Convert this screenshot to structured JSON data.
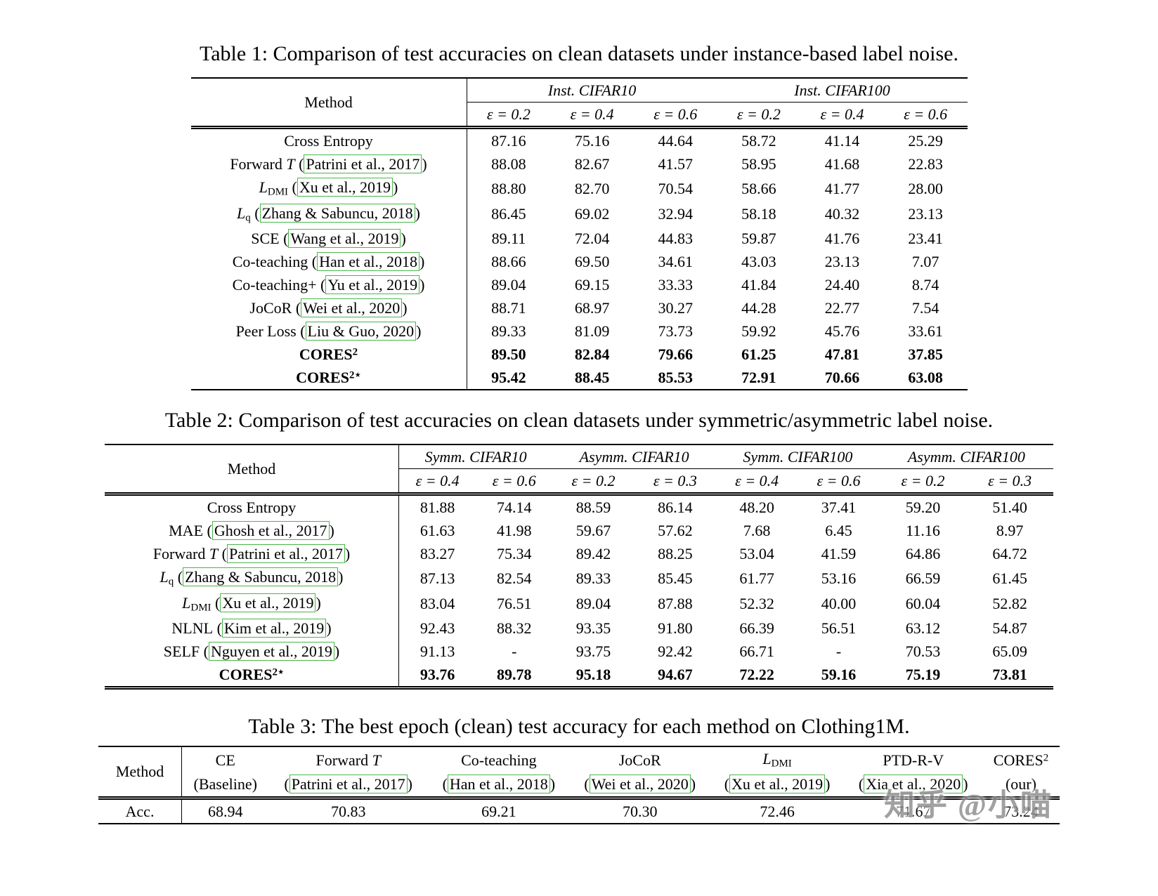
{
  "watermark": {
    "text": "知乎 @小喵"
  },
  "table1": {
    "caption": "Table 1: Comparison of test accuracies on clean datasets under instance-based label noise.",
    "method_header": "Method",
    "col_groups": [
      {
        "label": "Inst. CIFAR10",
        "subcols": [
          "ε = 0.2",
          "ε = 0.4",
          "ε = 0.6"
        ]
      },
      {
        "label": "Inst. CIFAR100",
        "subcols": [
          "ε = 0.2",
          "ε = 0.4",
          "ε = 0.6"
        ]
      }
    ],
    "rows": [
      {
        "method": [
          {
            "t": "text",
            "v": "Cross Entropy"
          }
        ],
        "values": [
          "87.16",
          "75.16",
          "44.64",
          "58.72",
          "41.14",
          "25.29"
        ],
        "bold": false
      },
      {
        "method": [
          {
            "t": "text",
            "v": "Forward "
          },
          {
            "t": "math",
            "v": "T"
          },
          {
            "t": "cite",
            "author": "Patrini et al.",
            "year": "2017"
          }
        ],
        "values": [
          "88.08",
          "82.67",
          "41.57",
          "58.95",
          "41.68",
          "22.83"
        ],
        "bold": false
      },
      {
        "method": [
          {
            "t": "math",
            "v": "L"
          },
          {
            "t": "sub",
            "v": "DMI"
          },
          {
            "t": "cite",
            "author": "Xu et al.",
            "year": "2019"
          }
        ],
        "values": [
          "88.80",
          "82.70",
          "70.54",
          "58.66",
          "41.77",
          "28.00"
        ],
        "bold": false
      },
      {
        "method": [
          {
            "t": "math",
            "v": "L"
          },
          {
            "t": "sub",
            "v": "q"
          },
          {
            "t": "cite",
            "author": "Zhang & Sabuncu",
            "year": "2018"
          }
        ],
        "values": [
          "86.45",
          "69.02",
          "32.94",
          "58.18",
          "40.32",
          "23.13"
        ],
        "bold": false
      },
      {
        "method": [
          {
            "t": "text",
            "v": "SCE"
          },
          {
            "t": "cite",
            "author": "Wang et al.",
            "year": "2019"
          }
        ],
        "values": [
          "89.11",
          "72.04",
          "44.83",
          "59.87",
          "41.76",
          "23.41"
        ],
        "bold": false
      },
      {
        "method": [
          {
            "t": "text",
            "v": "Co-teaching"
          },
          {
            "t": "cite",
            "author": "Han et al.",
            "year": "2018"
          }
        ],
        "values": [
          "88.66",
          "69.50",
          "34.61",
          "43.03",
          "23.13",
          "7.07"
        ],
        "bold": false
      },
      {
        "method": [
          {
            "t": "text",
            "v": "Co-teaching+"
          },
          {
            "t": "cite",
            "author": "Yu et al.",
            "year": "2019"
          }
        ],
        "values": [
          "89.04",
          "69.15",
          "33.33",
          "41.84",
          "24.40",
          "8.74"
        ],
        "bold": false
      },
      {
        "method": [
          {
            "t": "text",
            "v": "JoCoR"
          },
          {
            "t": "cite",
            "author": "Wei et al.",
            "year": "2020"
          }
        ],
        "values": [
          "88.71",
          "68.97",
          "30.27",
          "44.28",
          "22.77",
          "7.54"
        ],
        "bold": false
      },
      {
        "method": [
          {
            "t": "text",
            "v": "Peer Loss"
          },
          {
            "t": "cite",
            "author": "Liu & Guo",
            "year": "2020"
          }
        ],
        "values": [
          "89.33",
          "81.09",
          "73.73",
          "59.92",
          "45.76",
          "33.61"
        ],
        "bold": false
      },
      {
        "method": [
          {
            "t": "text",
            "v": "CORES"
          },
          {
            "t": "sup",
            "v": "2"
          }
        ],
        "values": [
          "89.50",
          "82.84",
          "79.66",
          "61.25",
          "47.81",
          "37.85"
        ],
        "bold": true
      },
      {
        "method": [
          {
            "t": "text",
            "v": "CORES"
          },
          {
            "t": "sup",
            "v": "2⋆"
          }
        ],
        "values": [
          "95.42",
          "88.45",
          "85.53",
          "72.91",
          "70.66",
          "63.08"
        ],
        "bold": true
      }
    ]
  },
  "table2": {
    "caption": "Table 2: Comparison of test accuracies on clean datasets under symmetric/asymmetric label noise.",
    "method_header": "Method",
    "col_groups": [
      {
        "label": "Symm. CIFAR10",
        "subcols": [
          "ε = 0.4",
          "ε = 0.6"
        ]
      },
      {
        "label": "Asymm. CIFAR10",
        "subcols": [
          "ε = 0.2",
          "ε = 0.3"
        ]
      },
      {
        "label": "Symm. CIFAR100",
        "subcols": [
          "ε = 0.4",
          "ε = 0.6"
        ]
      },
      {
        "label": "Asymm. CIFAR100",
        "subcols": [
          "ε = 0.2",
          "ε = 0.3"
        ]
      }
    ],
    "rows": [
      {
        "method": [
          {
            "t": "text",
            "v": "Cross Entropy"
          }
        ],
        "values": [
          "81.88",
          "74.14",
          "88.59",
          "86.14",
          "48.20",
          "37.41",
          "59.20",
          "51.40"
        ],
        "bold": false
      },
      {
        "method": [
          {
            "t": "text",
            "v": "MAE"
          },
          {
            "t": "cite",
            "author": "Ghosh et al.",
            "year": "2017"
          }
        ],
        "values": [
          "61.63",
          "41.98",
          "59.67",
          "57.62",
          "7.68",
          "6.45",
          "11.16",
          "8.97"
        ],
        "bold": false
      },
      {
        "method": [
          {
            "t": "text",
            "v": "Forward "
          },
          {
            "t": "math",
            "v": "T"
          },
          {
            "t": "cite",
            "author": "Patrini et al.",
            "year": "2017"
          }
        ],
        "values": [
          "83.27",
          "75.34",
          "89.42",
          "88.25",
          "53.04",
          "41.59",
          "64.86",
          "64.72"
        ],
        "bold": false
      },
      {
        "method": [
          {
            "t": "math",
            "v": "L"
          },
          {
            "t": "sub",
            "v": "q"
          },
          {
            "t": "cite",
            "author": "Zhang & Sabuncu",
            "year": "2018"
          }
        ],
        "values": [
          "87.13",
          "82.54",
          "89.33",
          "85.45",
          "61.77",
          "53.16",
          "66.59",
          "61.45"
        ],
        "bold": false
      },
      {
        "method": [
          {
            "t": "math",
            "v": "L"
          },
          {
            "t": "sub",
            "v": "DMI"
          },
          {
            "t": "cite",
            "author": "Xu et al.",
            "year": "2019"
          }
        ],
        "values": [
          "83.04",
          "76.51",
          "89.04",
          "87.88",
          "52.32",
          "40.00",
          "60.04",
          "52.82"
        ],
        "bold": false
      },
      {
        "method": [
          {
            "t": "text",
            "v": "NLNL"
          },
          {
            "t": "cite",
            "author": "Kim et al.",
            "year": "2019"
          }
        ],
        "values": [
          "92.43",
          "88.32",
          "93.35",
          "91.80",
          "66.39",
          "56.51",
          "63.12",
          "54.87"
        ],
        "bold": false
      },
      {
        "method": [
          {
            "t": "text",
            "v": "SELF"
          },
          {
            "t": "cite",
            "author": "Nguyen et al.",
            "year": "2019"
          }
        ],
        "values": [
          "91.13",
          "-",
          "93.75",
          "92.42",
          "66.71",
          "-",
          "70.53",
          "65.09"
        ],
        "bold": false
      },
      {
        "method": [
          {
            "t": "text",
            "v": "CORES"
          },
          {
            "t": "sup",
            "v": "2⋆"
          }
        ],
        "values": [
          "93.76",
          "89.78",
          "95.18",
          "94.67",
          "72.22",
          "59.16",
          "75.19",
          "73.81"
        ],
        "bold": true
      }
    ]
  },
  "table3": {
    "caption": "Table 3: The best epoch (clean) test accuracy for each method on Clothing1M.",
    "row_header": "Method",
    "acc_label": "Acc.",
    "columns": [
      {
        "top": [
          {
            "t": "text",
            "v": "CE"
          }
        ],
        "bottom": [
          {
            "t": "text",
            "v": "(Baseline)"
          }
        ]
      },
      {
        "top": [
          {
            "t": "text",
            "v": "Forward "
          },
          {
            "t": "math",
            "v": "T"
          }
        ],
        "bottom": [
          {
            "t": "cite",
            "author": "Patrini et al.",
            "year": "2017"
          }
        ]
      },
      {
        "top": [
          {
            "t": "text",
            "v": "Co-teaching"
          }
        ],
        "bottom": [
          {
            "t": "cite",
            "author": "Han et al.",
            "year": "2018"
          }
        ]
      },
      {
        "top": [
          {
            "t": "text",
            "v": "JoCoR"
          }
        ],
        "bottom": [
          {
            "t": "cite",
            "author": "Wei et al.",
            "year": "2020"
          }
        ]
      },
      {
        "top": [
          {
            "t": "math",
            "v": "L"
          },
          {
            "t": "sub",
            "v": "DMI"
          }
        ],
        "bottom": [
          {
            "t": "cite",
            "author": "Xu et al.",
            "year": "2019"
          }
        ]
      },
      {
        "top": [
          {
            "t": "text",
            "v": "PTD-R-V"
          }
        ],
        "bottom": [
          {
            "t": "cite",
            "author": "Xia et al.",
            "year": "2020"
          }
        ]
      },
      {
        "top": [
          {
            "t": "text",
            "v": "CORES"
          },
          {
            "t": "sup",
            "v": "2"
          }
        ],
        "bottom": [
          {
            "t": "text",
            "v": "(our)"
          }
        ]
      }
    ],
    "values": [
      "68.94",
      "70.83",
      "69.21",
      "70.30",
      "72.46",
      "71.67",
      "73.24"
    ]
  }
}
